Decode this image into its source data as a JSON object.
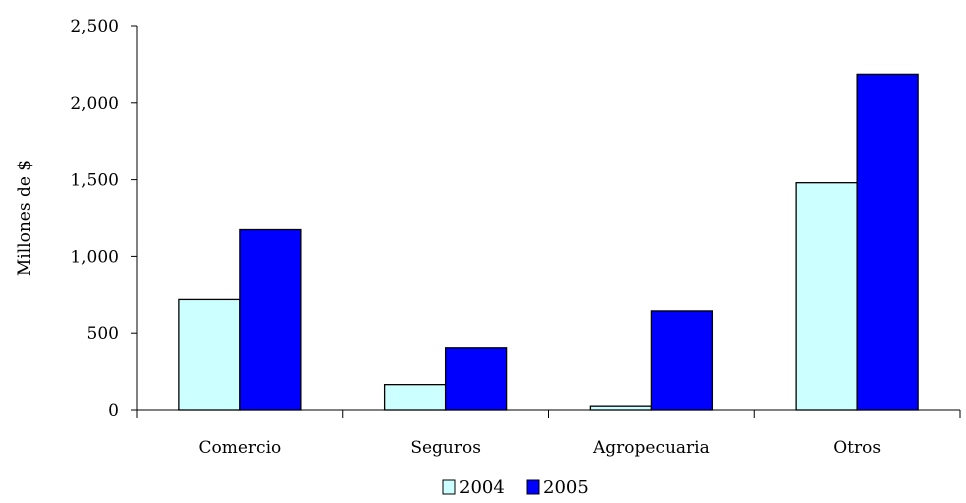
{
  "chart_data": {
    "type": "bar",
    "title": "",
    "xlabel": "",
    "ylabel": "Millones de $",
    "categories": [
      "Comercio",
      "Seguros",
      "Agropecuaria",
      "Otros"
    ],
    "series": [
      {
        "name": "2004",
        "values": [
          720,
          165,
          25,
          1480
        ],
        "color": "#ccffff"
      },
      {
        "name": "2005",
        "values": [
          1175,
          405,
          645,
          2185
        ],
        "color": "#0000ff"
      }
    ],
    "ylim": [
      0,
      2500
    ],
    "yticks": [
      0,
      500,
      1000,
      1500,
      2000,
      2500
    ],
    "ytick_labels": [
      "0",
      "500",
      "1,000",
      "1,500",
      "2,000",
      "2,500"
    ],
    "grid": false,
    "legend_position": "bottom"
  }
}
